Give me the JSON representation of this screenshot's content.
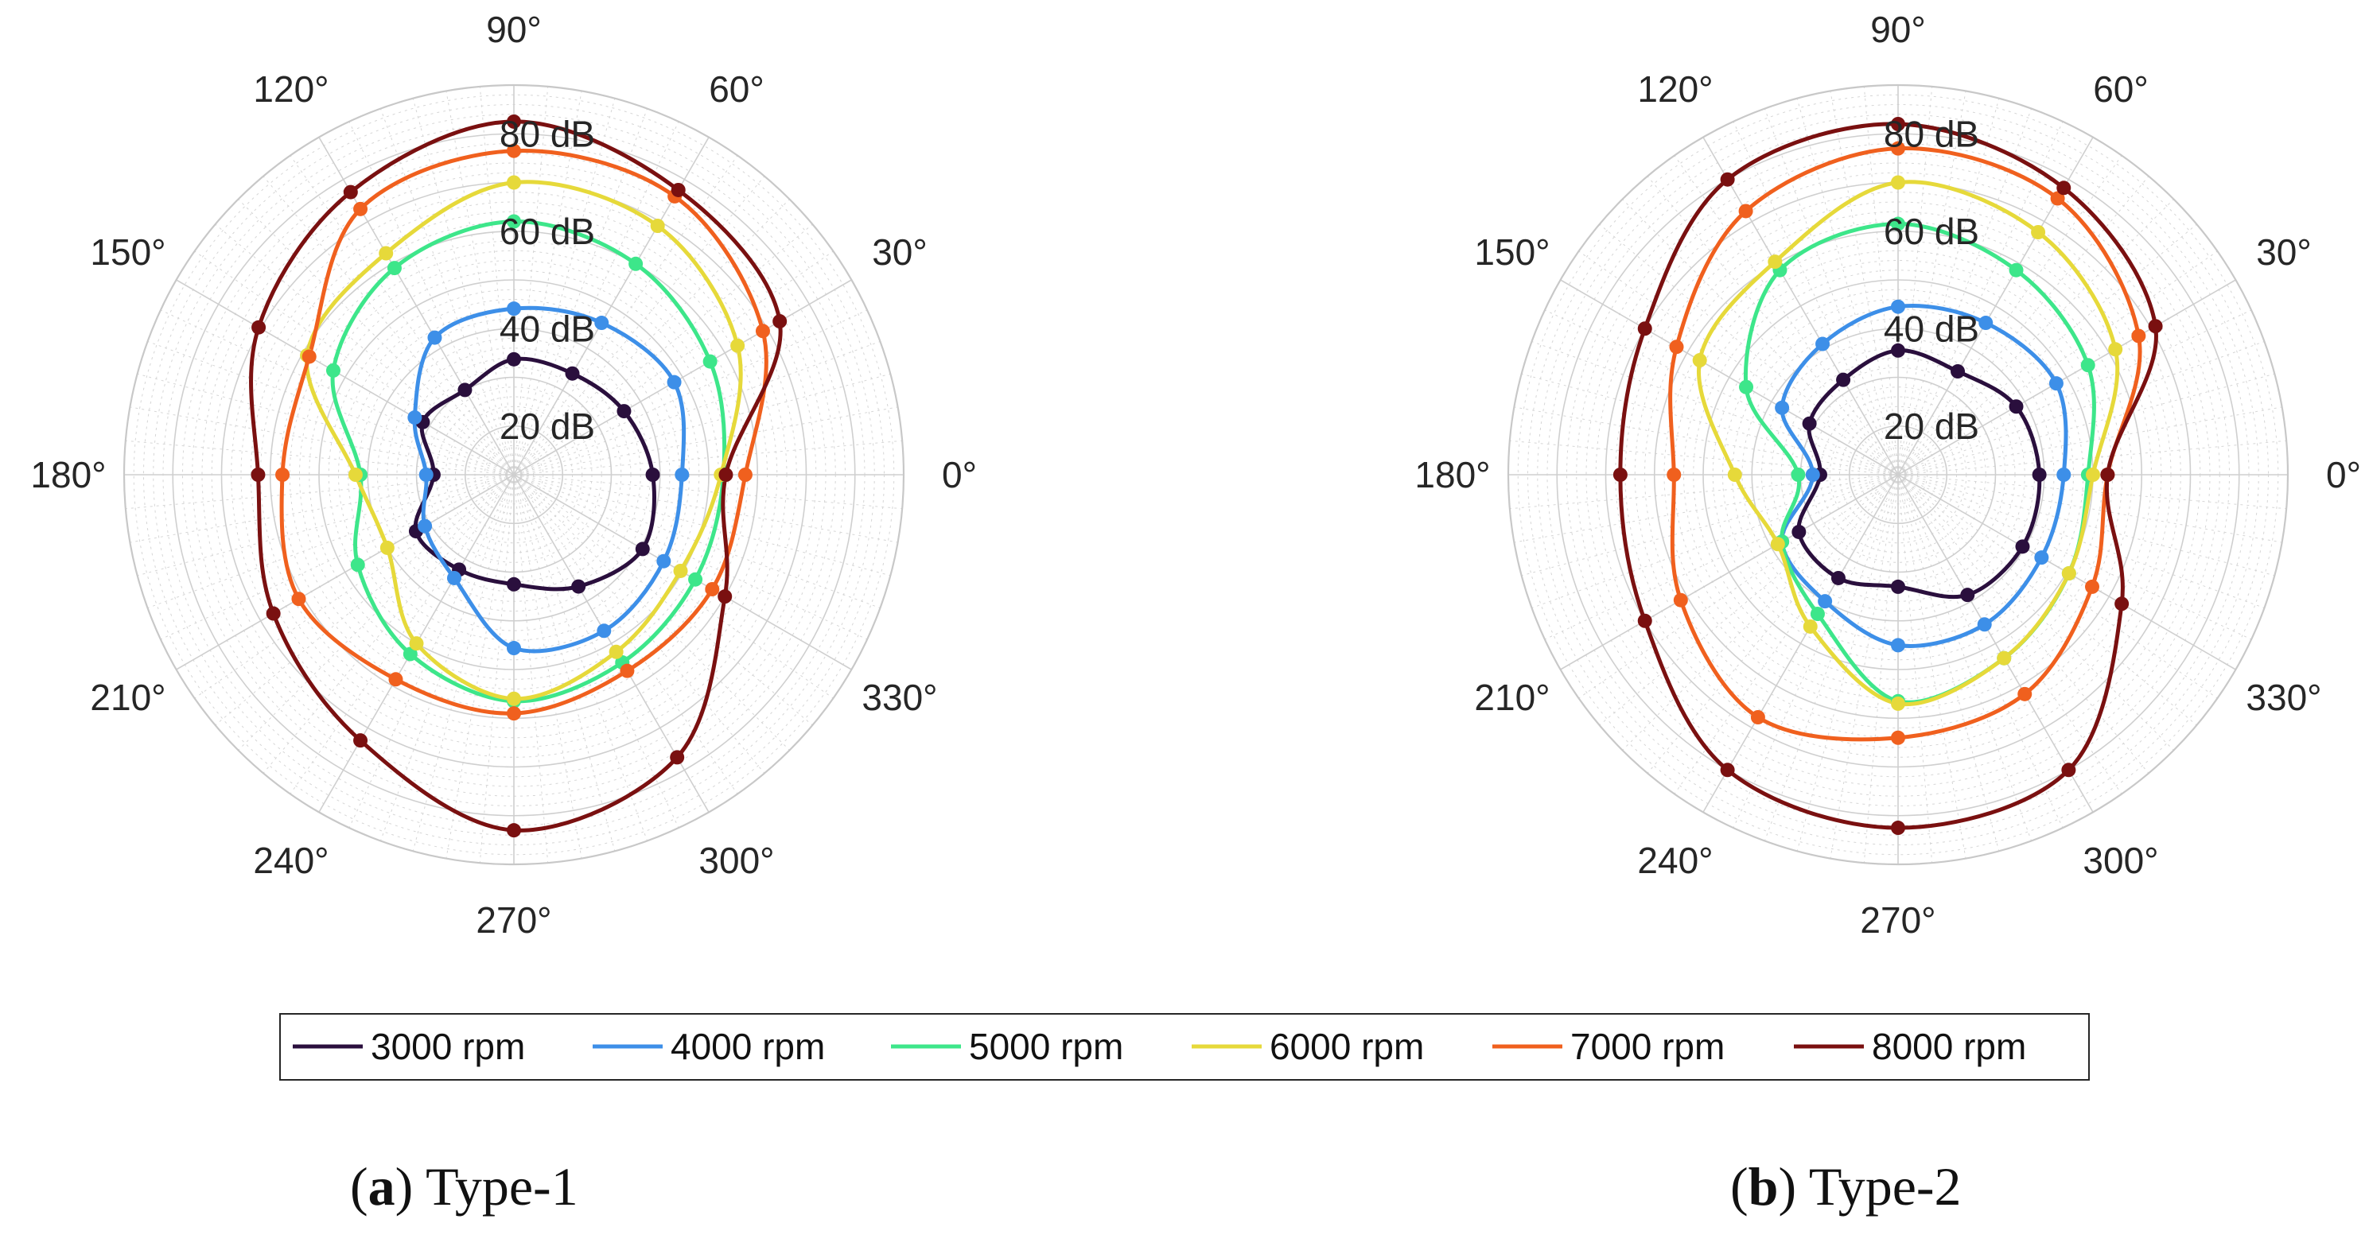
{
  "chart_data": [
    {
      "type": "polar",
      "panel_label": "a",
      "caption": "Type-1",
      "radial_unit": "dB",
      "r_range": [
        10,
        90
      ],
      "r_ticks": [
        20,
        40,
        60,
        80
      ],
      "r_tick_labels": [
        "20 dB",
        "40 dB",
        "60 dB",
        "80 dB"
      ],
      "theta_ticks": [
        0,
        30,
        60,
        90,
        120,
        150,
        180,
        210,
        240,
        270,
        300,
        330
      ],
      "theta_tick_labels": [
        "0°",
        "30°",
        "60°",
        "90°",
        "120°",
        "150°",
        "180°",
        "210°",
        "240°",
        "270°",
        "300°",
        "330°"
      ],
      "theta_marker_step_deg": 30,
      "grid": true,
      "series": [
        {
          "name": "3000 rpm",
          "color": "#2a0f3d",
          "theta": [
            0,
            30,
            60,
            90,
            120,
            150,
            180,
            210,
            240,
            270,
            300,
            330
          ],
          "values": [
            38.5,
            36.1,
            34.0,
            33.7,
            30.1,
            31.6,
            26.5,
            33.2,
            32.5,
            32.5,
            36.5,
            40.5
          ]
        },
        {
          "name": "4000 rpm",
          "color": "#3d8fe8",
          "theta": [
            0,
            30,
            60,
            90,
            120,
            150,
            180,
            210,
            240,
            270,
            300,
            330
          ],
          "values": [
            44.5,
            48.0,
            46.0,
            44.1,
            42.5,
            33.5,
            28.0,
            31.1,
            34.5,
            45.6,
            47.0,
            45.5
          ]
        },
        {
          "name": "5000 rpm",
          "color": "#3de68a",
          "theta": [
            0,
            30,
            60,
            90,
            120,
            150,
            180,
            210,
            240,
            270,
            300,
            330
          ],
          "values": [
            53.0,
            56.5,
            60.0,
            62.0,
            59.0,
            52.8,
            41.5,
            47.0,
            52.5,
            56.5,
            54.5,
            53.0
          ]
        },
        {
          "name": "6000 rpm",
          "color": "#e6d93a",
          "theta": [
            0,
            30,
            60,
            90,
            120,
            150,
            180,
            210,
            240,
            270,
            300,
            330
          ],
          "values": [
            52.5,
            63.0,
            69.0,
            70.0,
            62.5,
            59.0,
            42.5,
            40.0,
            50.0,
            56.0,
            52.0,
            49.5
          ]
        },
        {
          "name": "7000 rpm",
          "color": "#f0601e",
          "theta": [
            0,
            30,
            60,
            90,
            120,
            150,
            180,
            210,
            240,
            270,
            300,
            330
          ],
          "values": [
            57.5,
            69.0,
            76.0,
            76.5,
            73.0,
            58.5,
            57.5,
            61.0,
            58.5,
            59.0,
            56.5,
            57.0
          ]
        },
        {
          "name": "8000 rpm",
          "color": "#7a1010",
          "theta": [
            0,
            30,
            60,
            90,
            120,
            150,
            180,
            210,
            240,
            270,
            300,
            330
          ],
          "values": [
            53.5,
            73.0,
            77.5,
            82.5,
            77.0,
            70.5,
            62.5,
            67.0,
            73.0,
            83.0,
            77.0,
            60.0
          ]
        }
      ]
    },
    {
      "type": "polar",
      "panel_label": "b",
      "caption": "Type-2",
      "radial_unit": "dB",
      "r_range": [
        10,
        90
      ],
      "r_ticks": [
        20,
        40,
        60,
        80
      ],
      "r_tick_labels": [
        "20 dB",
        "40 dB",
        "60 dB",
        "80 dB"
      ],
      "theta_ticks": [
        0,
        30,
        60,
        90,
        120,
        150,
        180,
        210,
        240,
        270,
        300,
        330
      ],
      "theta_tick_labels": [
        "0°",
        "30°",
        "60°",
        "90°",
        "120°",
        "150°",
        "180°",
        "210°",
        "240°",
        "270°",
        "300°",
        "330°"
      ],
      "theta_marker_step_deg": 30,
      "grid": true,
      "series": [
        {
          "name": "3000 rpm",
          "color": "#2a0f3d",
          "theta": [
            0,
            30,
            60,
            90,
            120,
            150,
            180,
            210,
            240,
            270,
            300,
            330
          ],
          "values": [
            39.0,
            38.0,
            34.5,
            35.5,
            32.5,
            31.0,
            26.0,
            33.5,
            34.5,
            33.0,
            38.5,
            39.5
          ]
        },
        {
          "name": "4000 rpm",
          "color": "#3d8fe8",
          "theta": [
            0,
            30,
            60,
            90,
            120,
            150,
            180,
            210,
            240,
            270,
            300,
            330
          ],
          "values": [
            44.0,
            47.5,
            46.0,
            44.5,
            41.0,
            37.5,
            27.5,
            37.5,
            40.0,
            45.0,
            45.5,
            44.0
          ]
        },
        {
          "name": "5000 rpm",
          "color": "#3de68a",
          "theta": [
            0,
            30,
            60,
            90,
            120,
            150,
            180,
            210,
            240,
            270,
            300,
            330
          ],
          "values": [
            49.0,
            55.0,
            58.5,
            61.5,
            58.5,
            46.0,
            30.5,
            37.5,
            43.0,
            56.5,
            53.5,
            50.5
          ]
        },
        {
          "name": "6000 rpm",
          "color": "#e6d93a",
          "theta": [
            0,
            30,
            60,
            90,
            120,
            150,
            180,
            210,
            240,
            270,
            300,
            330
          ],
          "values": [
            50.0,
            61.5,
            67.5,
            70.0,
            60.5,
            57.0,
            43.5,
            38.5,
            46.0,
            57.0,
            53.5,
            50.5
          ]
        },
        {
          "name": "7000 rpm",
          "color": "#f0601e",
          "theta": [
            0,
            30,
            60,
            90,
            120,
            150,
            180,
            210,
            240,
            270,
            300,
            330
          ],
          "values": [
            53.0,
            67.0,
            75.5,
            77.0,
            72.5,
            62.5,
            56.0,
            61.5,
            67.5,
            64.0,
            62.0,
            56.0
          ]
        },
        {
          "name": "8000 rpm",
          "color": "#7a1010",
          "theta": [
            0,
            30,
            60,
            90,
            120,
            150,
            180,
            210,
            240,
            270,
            300,
            330
          ],
          "values": [
            53.0,
            71.0,
            78.0,
            82.0,
            80.0,
            70.0,
            67.0,
            70.0,
            80.0,
            82.5,
            80.0,
            63.0
          ]
        }
      ]
    }
  ],
  "legend": {
    "placement": "bottom-center",
    "entries": [
      {
        "label": "3000 rpm",
        "color": "#2a0f3d"
      },
      {
        "label": "4000 rpm",
        "color": "#3d8fe8"
      },
      {
        "label": "5000 rpm",
        "color": "#3de68a"
      },
      {
        "label": "6000 rpm",
        "color": "#e6d93a"
      },
      {
        "label": "7000 rpm",
        "color": "#f0601e"
      },
      {
        "label": "8000 rpm",
        "color": "#7a1010"
      }
    ]
  },
  "captions": [
    {
      "label": "a",
      "text": "Type-1"
    },
    {
      "label": "b",
      "text": "Type-2"
    }
  ]
}
